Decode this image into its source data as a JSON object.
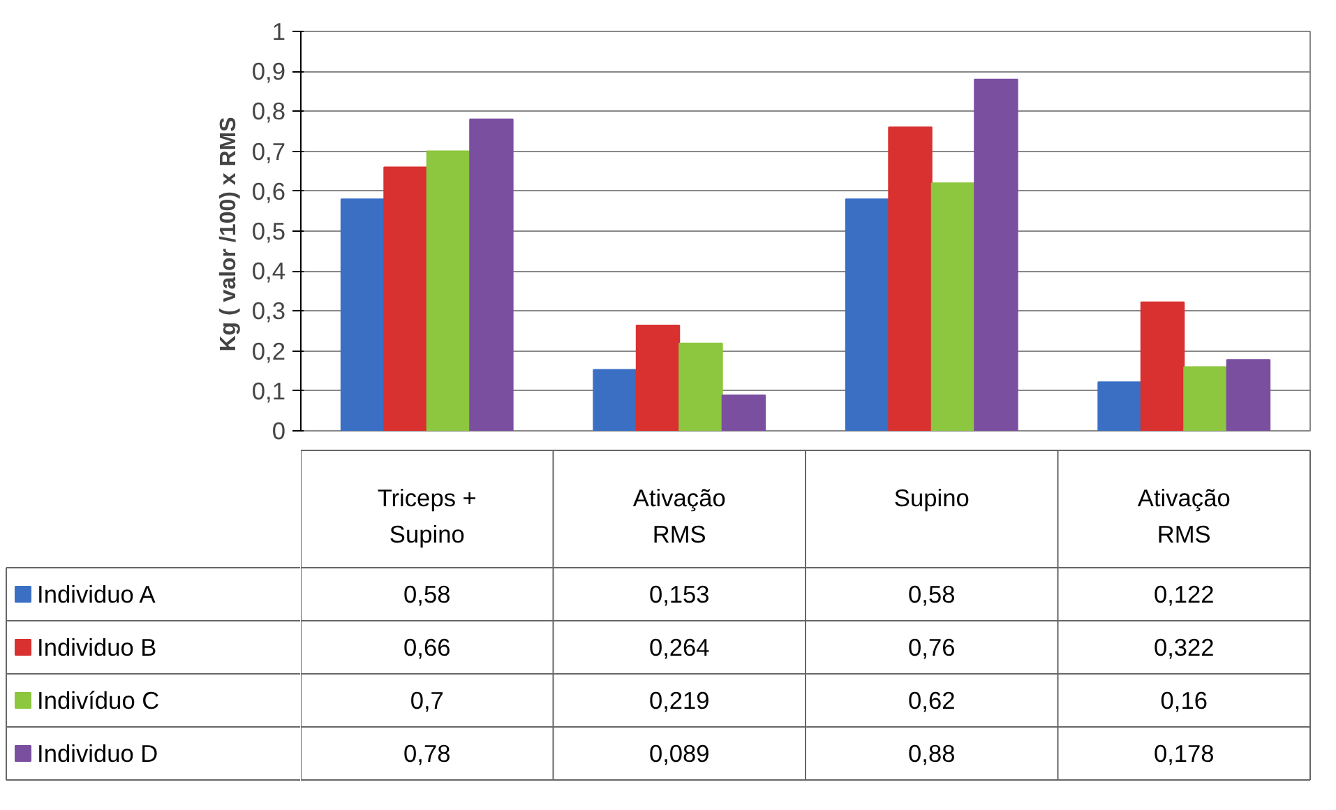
{
  "chart_data": {
    "type": "bar",
    "ylabel": "Kg ( valor /100)  x RMS",
    "categories": [
      "Triceps + Supino",
      "Ativação RMS",
      "Supino",
      "Ativação RMS"
    ],
    "series": [
      {
        "name": "Individuo A",
        "color": "#3b6fc4",
        "values": [
          0.58,
          0.153,
          0.58,
          0.122
        ],
        "value_labels": [
          "0,58",
          "0,153",
          "0,58",
          "0,122"
        ]
      },
      {
        "name": "Individuo B",
        "color": "#d93030",
        "values": [
          0.66,
          0.264,
          0.76,
          0.322
        ],
        "value_labels": [
          "0,66",
          "0,264",
          "0,76",
          "0,322"
        ]
      },
      {
        "name": "Indivíduo C",
        "color": "#8dc63f",
        "values": [
          0.7,
          0.219,
          0.62,
          0.16
        ],
        "value_labels": [
          "0,7",
          "0,219",
          "0,62",
          "0,16"
        ]
      },
      {
        "name": "Individuo D",
        "color": "#7b4fa0",
        "values": [
          0.78,
          0.089,
          0.88,
          0.178
        ],
        "value_labels": [
          "0,78",
          "0,089",
          "0,88",
          "0,178"
        ]
      }
    ],
    "ylim": [
      0,
      1
    ],
    "yticks": [
      0,
      {
        "value": 0.1,
        "label": "0,1"
      },
      {
        "value": 0.2,
        "label": "0,2"
      },
      {
        "value": 0.3,
        "label": "0,3"
      },
      {
        "value": 0.4,
        "label": "0,4"
      },
      {
        "value": 0.5,
        "label": "0,5"
      },
      {
        "value": 0.6,
        "label": "0,6"
      },
      {
        "value": 0.7,
        "label": "0,7"
      },
      {
        "value": 0.8,
        "label": "0,8"
      },
      {
        "value": 0.9,
        "label": "0,9"
      },
      1
    ],
    "grid": "y",
    "legend": "bottom left"
  }
}
